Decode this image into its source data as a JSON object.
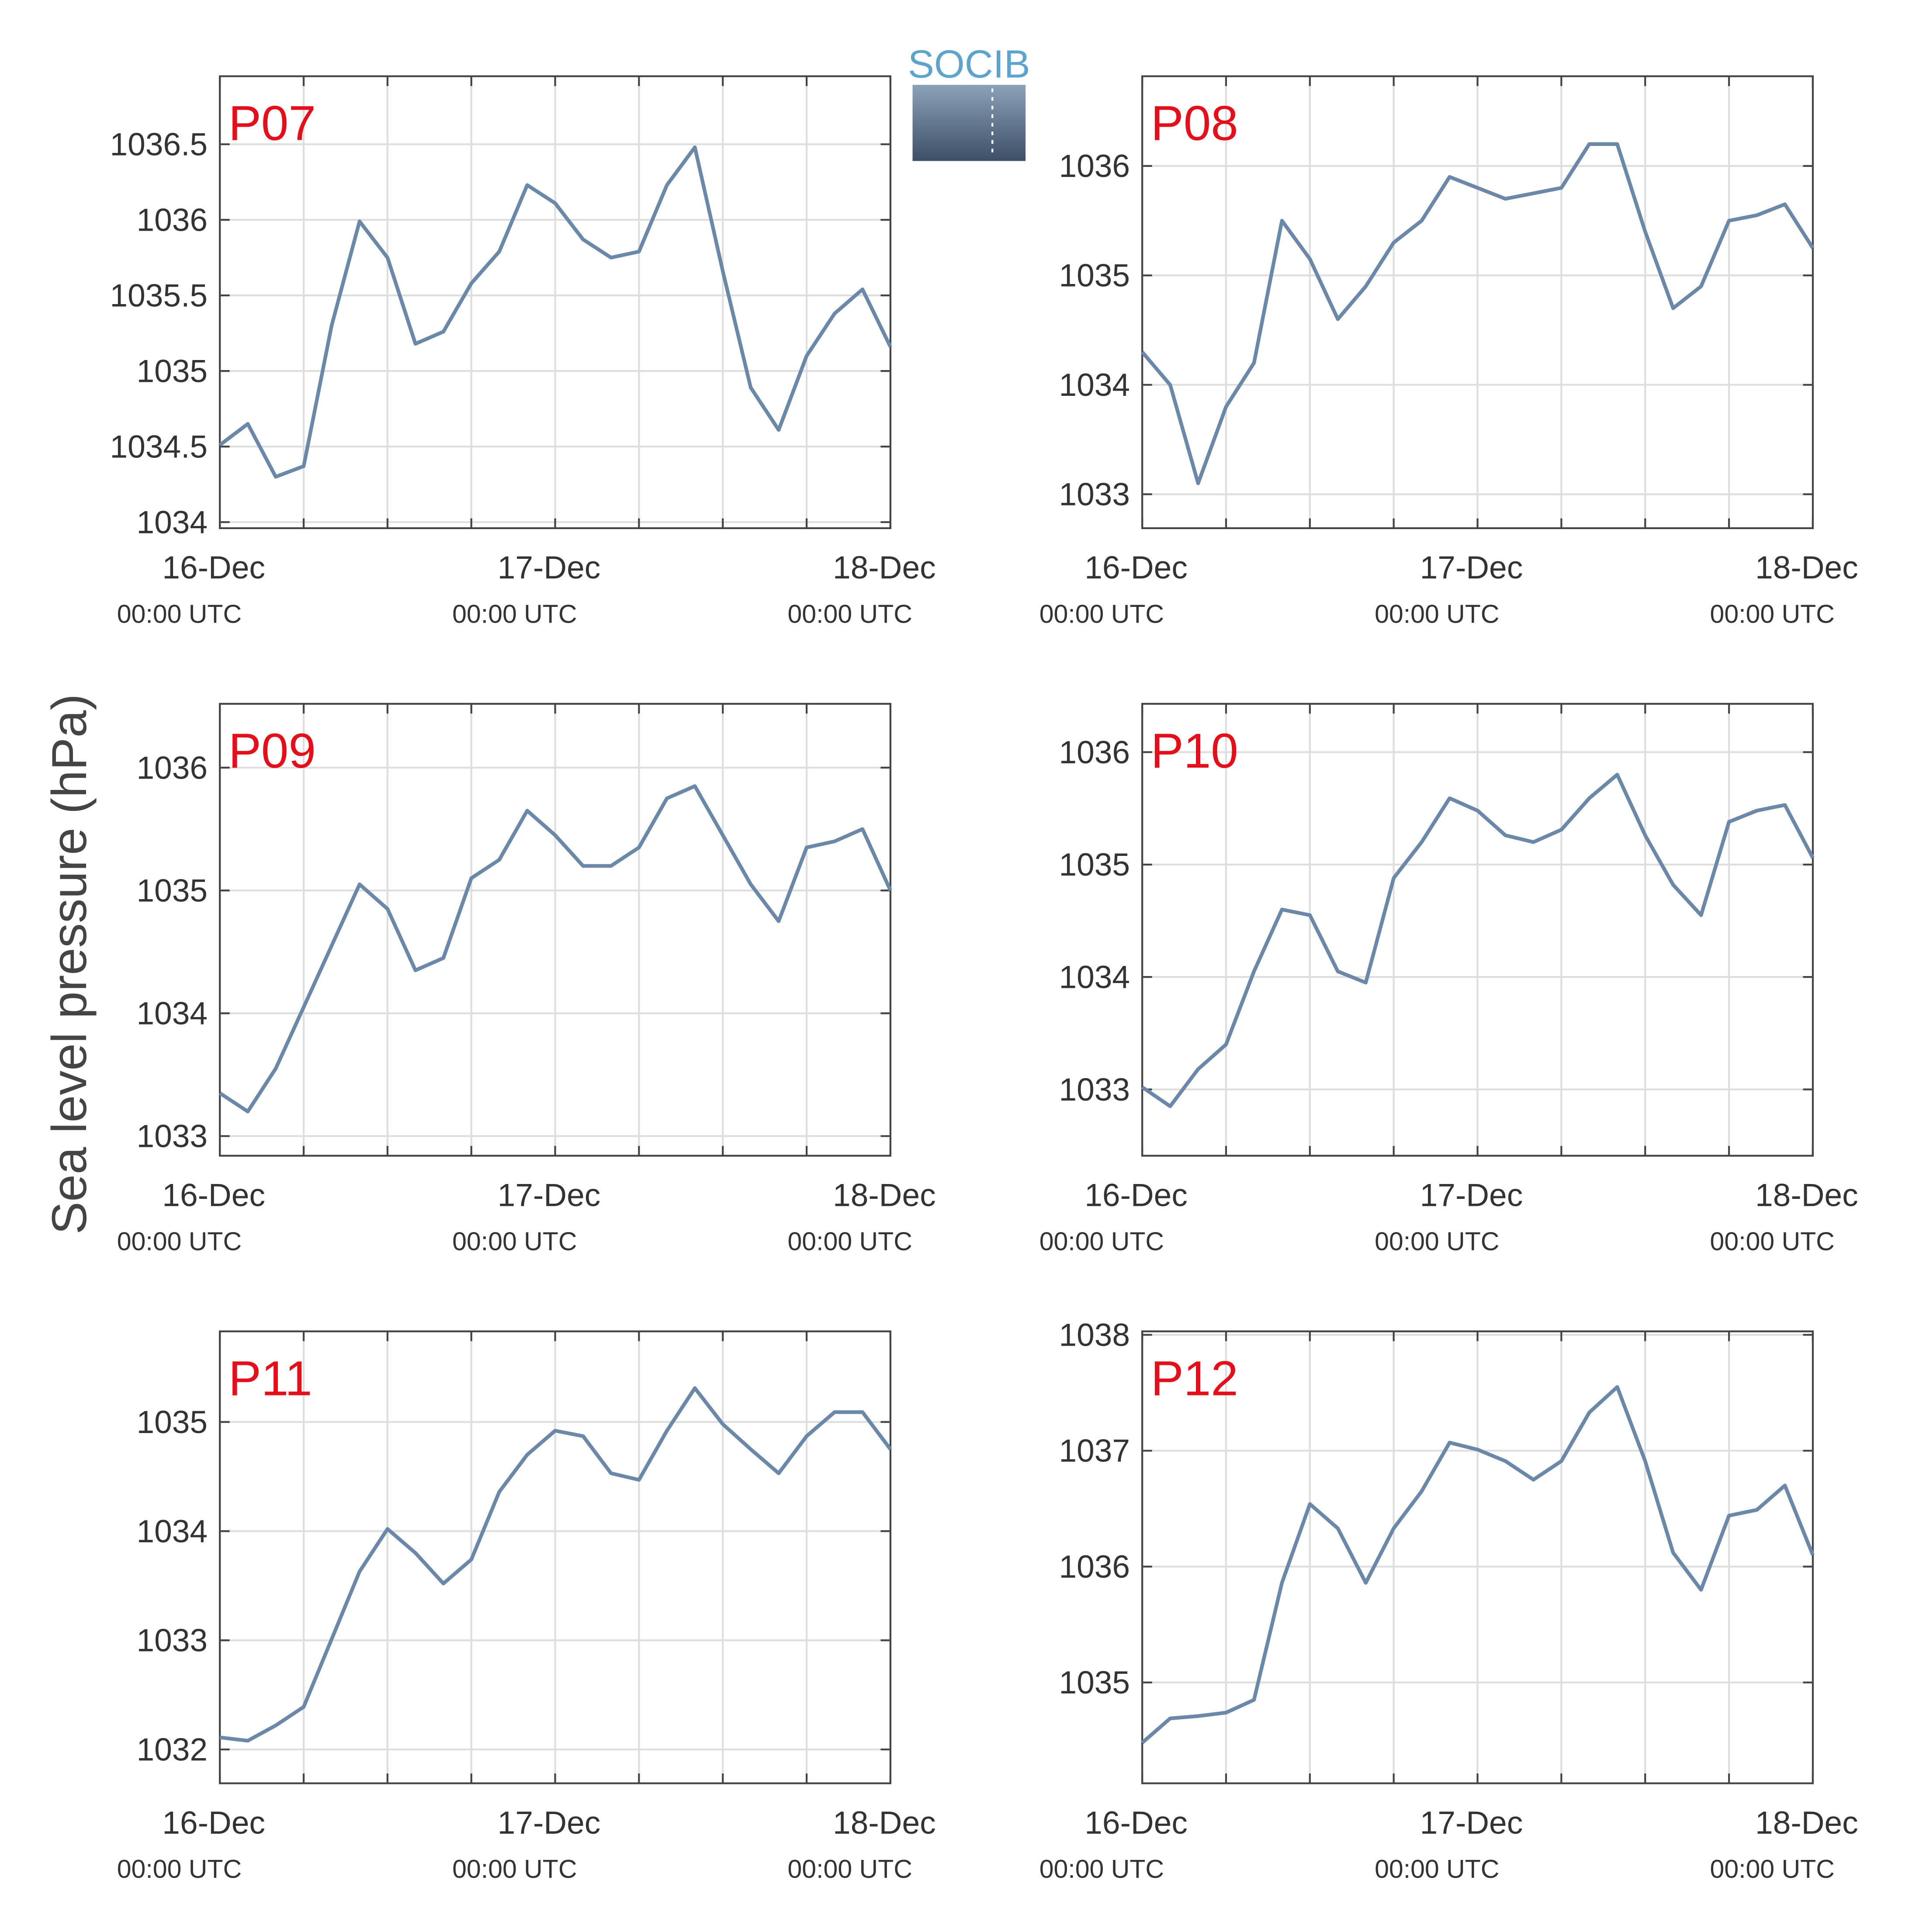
{
  "ylabel": "Sea level pressure (hPa)",
  "logo": "SOCIB",
  "chart_data": [
    {
      "type": "line",
      "title": "P07",
      "color": "#6b88a8",
      "x": [
        0,
        2,
        4,
        6,
        8,
        10,
        12,
        14,
        16,
        18,
        20,
        22,
        24,
        26,
        28,
        30,
        32,
        34,
        36,
        38,
        40,
        42,
        44,
        46,
        48
      ],
      "values": [
        1034.51,
        1034.65,
        1034.3,
        1034.37,
        1035.3,
        1035.99,
        1035.75,
        1035.18,
        1035.26,
        1035.58,
        1035.79,
        1036.23,
        1036.11,
        1035.87,
        1035.75,
        1035.79,
        1036.23,
        1036.48,
        1035.66,
        1034.89,
        1034.61,
        1035.1,
        1035.38,
        1035.54,
        1035.16
      ],
      "xlim": [
        0,
        48
      ],
      "ylim": [
        1033.96,
        1036.95
      ],
      "xticks": [
        {
          "value": 0,
          "label": "16-Dec",
          "sublabel": "00:00 UTC"
        },
        6,
        12,
        18,
        {
          "value": 24,
          "label": "17-Dec",
          "sublabel": "00:00 UTC"
        },
        30,
        36,
        42,
        {
          "value": 48,
          "label": "18-Dec",
          "sublabel": "00:00 UTC"
        }
      ],
      "yticks": [
        1034,
        1034.5,
        1035,
        1035.5,
        1036,
        1036.5
      ],
      "grid": true
    },
    {
      "type": "line",
      "title": "P08",
      "color": "#6b88a8",
      "x": [
        0,
        2,
        4,
        6,
        8,
        10,
        12,
        14,
        16,
        18,
        20,
        22,
        24,
        26,
        28,
        30,
        32,
        34,
        36,
        38,
        40,
        42,
        44,
        46,
        48
      ],
      "values": [
        1034.3,
        1034.0,
        1033.1,
        1033.8,
        1034.2,
        1035.5,
        1035.15,
        1034.6,
        1034.9,
        1035.3,
        1035.5,
        1035.9,
        1035.8,
        1035.7,
        1035.75,
        1035.8,
        1036.2,
        1036.2,
        1035.4,
        1034.7,
        1034.9,
        1035.5,
        1035.55,
        1035.65,
        1035.25
      ],
      "xlim": [
        0,
        48
      ],
      "ylim": [
        1032.69,
        1036.82
      ],
      "xticks": [
        {
          "value": 0,
          "label": "16-Dec",
          "sublabel": "00:00 UTC"
        },
        6,
        12,
        18,
        {
          "value": 24,
          "label": "17-Dec",
          "sublabel": "00:00 UTC"
        },
        30,
        36,
        42,
        {
          "value": 48,
          "label": "18-Dec",
          "sublabel": "00:00 UTC"
        }
      ],
      "yticks": [
        1033,
        1034,
        1035,
        1036
      ],
      "grid": true
    },
    {
      "type": "line",
      "title": "P09",
      "color": "#6b88a8",
      "x": [
        0,
        2,
        4,
        6,
        8,
        10,
        12,
        14,
        16,
        18,
        20,
        22,
        24,
        26,
        28,
        30,
        32,
        34,
        36,
        38,
        40,
        42,
        44,
        46,
        48
      ],
      "values": [
        1033.35,
        1033.2,
        1033.55,
        1034.05,
        1034.55,
        1035.05,
        1034.85,
        1034.35,
        1034.45,
        1035.1,
        1035.25,
        1035.65,
        1035.45,
        1035.2,
        1035.2,
        1035.35,
        1035.75,
        1035.85,
        1035.45,
        1035.05,
        1034.75,
        1035.35,
        1035.4,
        1035.5,
        1035.0
      ],
      "xlim": [
        0,
        48
      ],
      "ylim": [
        1032.84,
        1036.52
      ],
      "xticks": [
        {
          "value": 0,
          "label": "16-Dec",
          "sublabel": "00:00 UTC"
        },
        6,
        12,
        18,
        {
          "value": 24,
          "label": "17-Dec",
          "sublabel": "00:00 UTC"
        },
        30,
        36,
        42,
        {
          "value": 48,
          "label": "18-Dec",
          "sublabel": "00:00 UTC"
        }
      ],
      "yticks": [
        1033,
        1034,
        1035,
        1036
      ],
      "grid": true
    },
    {
      "type": "line",
      "title": "P10",
      "color": "#6b88a8",
      "x": [
        0,
        2,
        4,
        6,
        8,
        10,
        12,
        14,
        16,
        18,
        20,
        22,
        24,
        26,
        28,
        30,
        32,
        34,
        36,
        38,
        40,
        42,
        44,
        46,
        48
      ],
      "values": [
        1033.02,
        1032.85,
        1033.18,
        1033.4,
        1034.05,
        1034.6,
        1034.55,
        1034.05,
        1033.95,
        1034.88,
        1035.2,
        1035.59,
        1035.48,
        1035.26,
        1035.2,
        1035.31,
        1035.59,
        1035.8,
        1035.26,
        1034.82,
        1034.55,
        1035.38,
        1035.48,
        1035.53,
        1035.06
      ],
      "xlim": [
        0,
        48
      ],
      "ylim": [
        1032.41,
        1036.43
      ],
      "xticks": [
        {
          "value": 0,
          "label": "16-Dec",
          "sublabel": "00:00 UTC"
        },
        6,
        12,
        18,
        {
          "value": 24,
          "label": "17-Dec",
          "sublabel": "00:00 UTC"
        },
        30,
        36,
        42,
        {
          "value": 48,
          "label": "18-Dec",
          "sublabel": "00:00 UTC"
        }
      ],
      "yticks": [
        1033,
        1034,
        1035,
        1036
      ],
      "grid": true
    },
    {
      "type": "line",
      "title": "P11",
      "color": "#6b88a8",
      "x": [
        0,
        2,
        4,
        6,
        8,
        10,
        12,
        14,
        16,
        18,
        20,
        22,
        24,
        26,
        28,
        30,
        32,
        34,
        36,
        38,
        40,
        42,
        44,
        46,
        48
      ],
      "values": [
        1032.11,
        1032.08,
        1032.22,
        1032.39,
        1033.01,
        1033.63,
        1034.02,
        1033.8,
        1033.52,
        1033.74,
        1034.36,
        1034.7,
        1034.92,
        1034.87,
        1034.53,
        1034.47,
        1034.92,
        1035.31,
        1034.98,
        1034.75,
        1034.53,
        1034.87,
        1035.09,
        1035.09,
        1034.75
      ],
      "xlim": [
        0,
        48
      ],
      "ylim": [
        1031.69,
        1035.83
      ],
      "xticks": [
        {
          "value": 0,
          "label": "16-Dec",
          "sublabel": "00:00 UTC"
        },
        6,
        12,
        18,
        {
          "value": 24,
          "label": "17-Dec",
          "sublabel": "00:00 UTC"
        },
        30,
        36,
        42,
        {
          "value": 48,
          "label": "18-Dec",
          "sublabel": "00:00 UTC"
        }
      ],
      "yticks": [
        1032,
        1033,
        1034,
        1035
      ],
      "grid": true
    },
    {
      "type": "line",
      "title": "P12",
      "color": "#6b88a8",
      "x": [
        0,
        2,
        4,
        6,
        8,
        10,
        12,
        14,
        16,
        18,
        20,
        22,
        24,
        26,
        28,
        30,
        32,
        34,
        36,
        38,
        40,
        42,
        44,
        46,
        48
      ],
      "values": [
        1034.48,
        1034.69,
        1034.71,
        1034.74,
        1034.85,
        1035.86,
        1036.54,
        1036.33,
        1035.86,
        1036.33,
        1036.65,
        1037.07,
        1037.01,
        1036.91,
        1036.75,
        1036.91,
        1037.33,
        1037.55,
        1036.91,
        1036.12,
        1035.8,
        1036.44,
        1036.49,
        1036.7,
        1036.1
      ],
      "xlim": [
        0,
        48
      ],
      "ylim": [
        1034.13,
        1038.03
      ],
      "xticks": [
        {
          "value": 0,
          "label": "16-Dec",
          "sublabel": "00:00 UTC"
        },
        6,
        12,
        18,
        {
          "value": 24,
          "label": "17-Dec",
          "sublabel": "00:00 UTC"
        },
        30,
        36,
        42,
        {
          "value": 48,
          "label": "18-Dec",
          "sublabel": "00:00 UTC"
        }
      ],
      "yticks": [
        1035,
        1036,
        1037,
        1038
      ],
      "grid": true
    }
  ]
}
